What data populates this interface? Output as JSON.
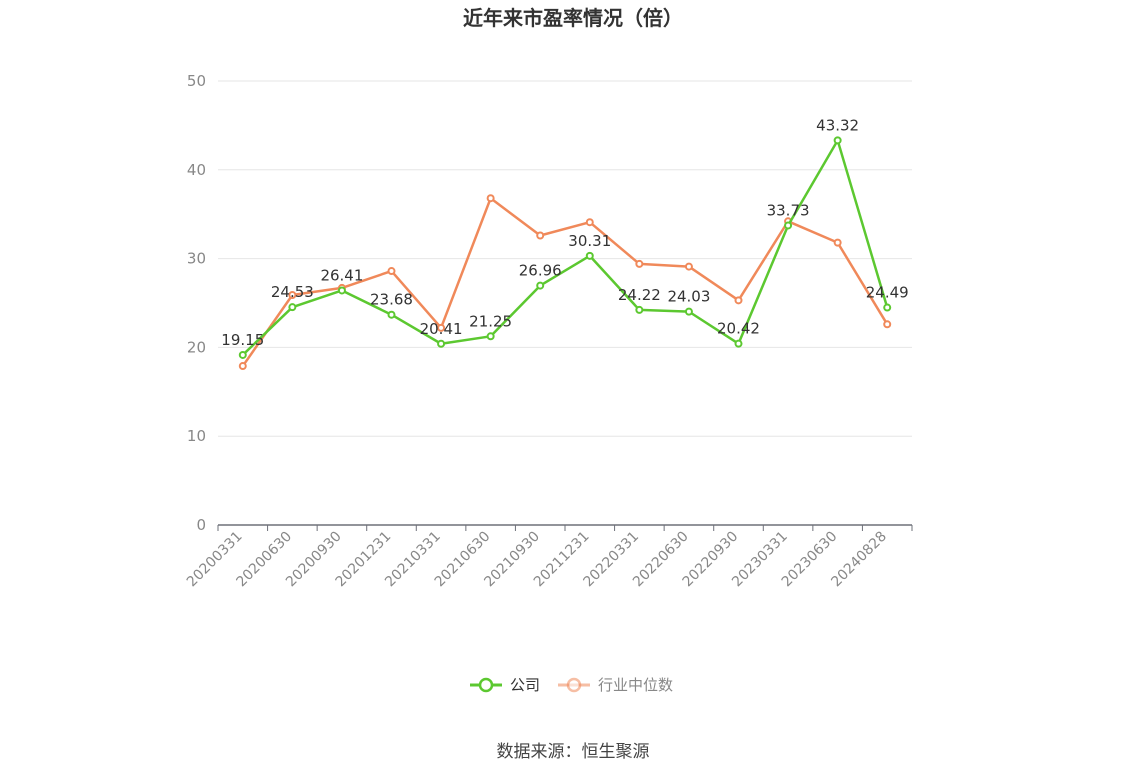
{
  "chart_data": {
    "type": "line",
    "title": "近年来市盈率情况（倍）",
    "categories": [
      "20200331",
      "20200630",
      "20200930",
      "20201231",
      "20210331",
      "20210630",
      "20210930",
      "20211231",
      "20220331",
      "20220630",
      "20220930",
      "20230331",
      "20230630",
      "20240828"
    ],
    "series": [
      {
        "name": "公司",
        "color": "#5cc830",
        "values": [
          19.15,
          24.53,
          26.41,
          23.68,
          20.41,
          21.25,
          26.96,
          30.31,
          24.22,
          24.03,
          20.42,
          33.73,
          43.32,
          24.49
        ],
        "labels": [
          "19.15",
          "24.53",
          "26.41",
          "23.68",
          "20.41",
          "21.25",
          "26.96",
          "30.31",
          "24.22",
          "24.03",
          "20.42",
          "33.73",
          "43.32",
          "24.49"
        ]
      },
      {
        "name": "行业中位数",
        "color": "#f0895a",
        "values": [
          17.9,
          25.9,
          26.7,
          28.6,
          22.2,
          36.8,
          32.6,
          34.1,
          29.4,
          29.1,
          25.3,
          34.2,
          31.8,
          22.6
        ]
      }
    ],
    "ylim": [
      0,
      50
    ],
    "yticks": [
      0,
      10,
      20,
      30,
      40,
      50
    ],
    "grid": true,
    "legend_position": "bottom"
  },
  "source_text": "数据来源：恒生聚源"
}
